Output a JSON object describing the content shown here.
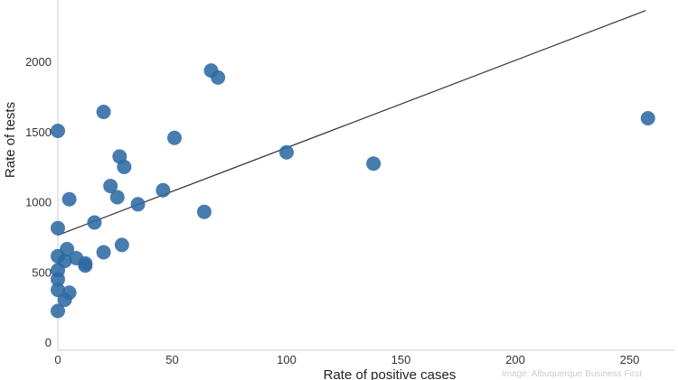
{
  "chart_data": {
    "type": "scatter",
    "xlabel": "Rate of positive cases",
    "ylabel": "Rate of tests",
    "xlim": [
      0,
      270
    ],
    "ylim": [
      -50,
      2400
    ],
    "x_ticks": [
      0,
      50,
      100,
      150,
      200,
      250
    ],
    "y_ticks": [
      0,
      500,
      1000,
      1500,
      2000
    ],
    "grid": false,
    "colors": {
      "points": "#2e6aa3",
      "trendline": "#333333",
      "axis": "#cccccc"
    },
    "points": [
      {
        "x": 0,
        "y": 1505
      },
      {
        "x": 0,
        "y": 812
      },
      {
        "x": 0,
        "y": 612
      },
      {
        "x": 0,
        "y": 512
      },
      {
        "x": 0,
        "y": 448
      },
      {
        "x": 0,
        "y": 372
      },
      {
        "x": 0,
        "y": 222
      },
      {
        "x": 3,
        "y": 302
      },
      {
        "x": 3,
        "y": 578
      },
      {
        "x": 4,
        "y": 662
      },
      {
        "x": 5,
        "y": 1018
      },
      {
        "x": 5,
        "y": 352
      },
      {
        "x": 8,
        "y": 598
      },
      {
        "x": 12,
        "y": 560
      },
      {
        "x": 12,
        "y": 545
      },
      {
        "x": 16,
        "y": 852
      },
      {
        "x": 20,
        "y": 1640
      },
      {
        "x": 20,
        "y": 640
      },
      {
        "x": 23,
        "y": 1112
      },
      {
        "x": 26,
        "y": 1032
      },
      {
        "x": 27,
        "y": 1322
      },
      {
        "x": 28,
        "y": 692
      },
      {
        "x": 29,
        "y": 1248
      },
      {
        "x": 35,
        "y": 982
      },
      {
        "x": 46,
        "y": 1082
      },
      {
        "x": 51,
        "y": 1455
      },
      {
        "x": 64,
        "y": 928
      },
      {
        "x": 67,
        "y": 1935
      },
      {
        "x": 70,
        "y": 1885
      },
      {
        "x": 100,
        "y": 1352
      },
      {
        "x": 138,
        "y": 1272
      },
      {
        "x": 258,
        "y": 1595
      }
    ],
    "trendline": {
      "x": [
        0,
        257
      ],
      "y": [
        762,
        2362
      ]
    }
  },
  "credit": "Image: Albuquerque Business First"
}
